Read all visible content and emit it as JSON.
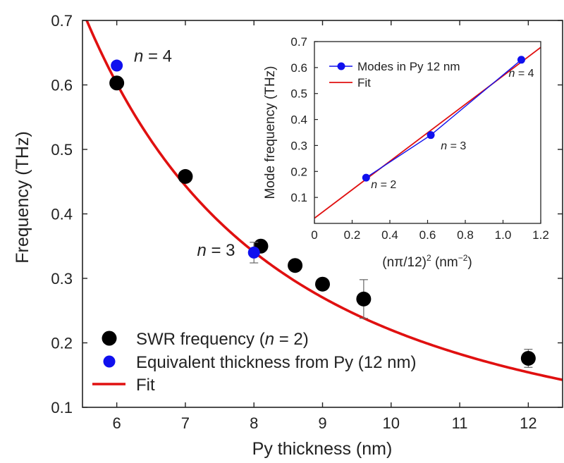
{
  "chart_data": [
    {
      "id": "main",
      "type": "scatter",
      "xlabel": "Py thickness (nm)",
      "ylabel": "Frequency (THz)",
      "xlim": [
        5.5,
        12.5
      ],
      "ylim": [
        0.1,
        0.7
      ],
      "xticks": [
        6,
        7,
        8,
        9,
        10,
        11,
        12
      ],
      "yticks": [
        0.1,
        0.2,
        0.3,
        0.4,
        0.5,
        0.6,
        0.7
      ],
      "series": [
        {
          "name": "SWR frequency (n = 2)",
          "label_prefix": "SWR frequency (",
          "label_italic": "n",
          "label_suffix": " = 2)",
          "kind": "scatter",
          "color": "#000000",
          "points": [
            {
              "x": 6.0,
              "y": 0.603,
              "err": 0.0
            },
            {
              "x": 7.0,
              "y": 0.458,
              "err": 0.0
            },
            {
              "x": 8.1,
              "y": 0.35,
              "err": 0.0
            },
            {
              "x": 8.6,
              "y": 0.32,
              "err": 0.0
            },
            {
              "x": 9.0,
              "y": 0.291,
              "err": 0.0
            },
            {
              "x": 9.6,
              "y": 0.268,
              "err": 0.03
            },
            {
              "x": 12.0,
              "y": 0.176,
              "err": 0.014
            }
          ]
        },
        {
          "name": "Equivalent thickness from Py (12 nm)",
          "label_prefix": "Equivalent thickness from Py (12 nm)",
          "label_italic": "",
          "label_suffix": "",
          "kind": "scatter",
          "color": "#1010ee",
          "points": [
            {
              "x": 6.0,
              "y": 0.63,
              "err": 0.0
            },
            {
              "x": 8.0,
              "y": 0.34,
              "err": 0.016
            }
          ]
        },
        {
          "name": "Fit",
          "label_prefix": "Fit",
          "label_italic": "",
          "label_suffix": "",
          "kind": "line",
          "color": "#e01010",
          "function": "y = 0.005 + 21.5 / x^2",
          "fit_a": 0.005,
          "fit_b": 21.5,
          "x_range": [
            5.5,
            12.5
          ]
        }
      ],
      "annotations": [
        {
          "italic": "n",
          "text": " = 4",
          "x": 6.25,
          "y": 0.636
        },
        {
          "italic": "n",
          "text": " = 3",
          "x": 7.17,
          "y": 0.335
        }
      ]
    },
    {
      "id": "inset",
      "type": "line",
      "xlabel_text": "(nπ/12)",
      "xlabel_sup1": "2",
      "xlabel_unit": " (nm",
      "xlabel_sup2": "−2",
      "xlabel_close": ")",
      "ylabel": "Mode frequency (THz)",
      "xlim": [
        0,
        1.2
      ],
      "ylim": [
        0,
        0.7
      ],
      "xticks": [
        {
          "value": 0,
          "label": "0"
        },
        {
          "value": 0.2,
          "label": "0.2"
        },
        {
          "value": 0.4,
          "label": "0.4"
        },
        {
          "value": 0.6,
          "label": "0.6"
        },
        {
          "value": 0.8,
          "label": "0.8"
        },
        {
          "value": 1.0,
          "label": "1.0"
        },
        {
          "value": 1.2,
          "label": "1.2"
        }
      ],
      "yticks": [
        {
          "value": 0.1,
          "label": "0.1"
        },
        {
          "value": 0.2,
          "label": "0.2"
        },
        {
          "value": 0.3,
          "label": "0.3"
        },
        {
          "value": 0.4,
          "label": "0.4"
        },
        {
          "value": 0.5,
          "label": "0.5"
        },
        {
          "value": 0.6,
          "label": "0.6"
        },
        {
          "value": 0.7,
          "label": "0.7"
        }
      ],
      "series": [
        {
          "name": "Modes in Py 12 nm",
          "kind": "line-marker",
          "color": "#1010ee",
          "x": [
            0.274,
            0.617,
            1.097
          ],
          "y": [
            0.176,
            0.34,
            0.63
          ]
        },
        {
          "name": "Fit",
          "kind": "line",
          "color": "#e01010",
          "slope": 0.548,
          "intercept": 0.02,
          "x_range": [
            0,
            1.2
          ]
        }
      ],
      "annotations": [
        {
          "italic": "n",
          "text": " = 2",
          "x": 0.3,
          "y": 0.135
        },
        {
          "italic": "n",
          "text": " = 3",
          "x": 0.67,
          "y": 0.285
        },
        {
          "italic": "n",
          "text": " = 4",
          "x": 1.03,
          "y": 0.565
        }
      ]
    }
  ]
}
